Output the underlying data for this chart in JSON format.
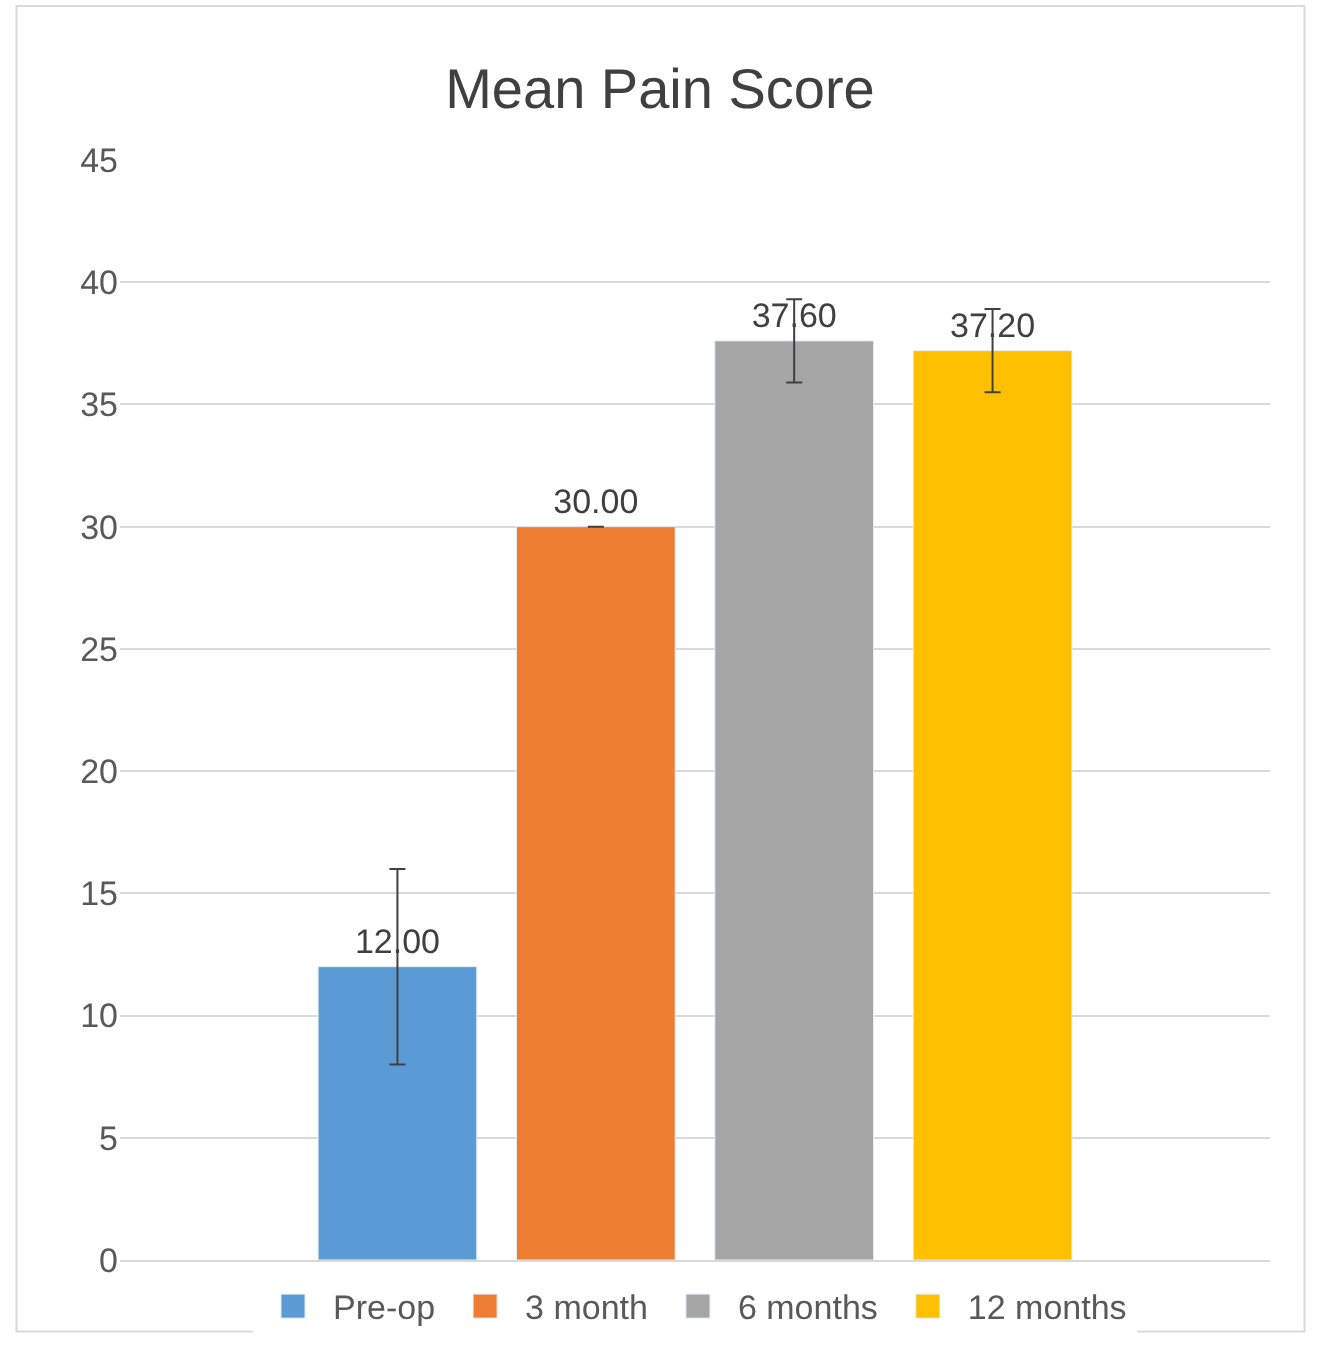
{
  "chart_data": {
    "type": "bar",
    "title": "Mean Pain Score",
    "categories": [
      null
    ],
    "series": [
      {
        "name": "Pre-op",
        "color": "#5b9bd5",
        "values": [
          12.0
        ],
        "errors": [
          4
        ],
        "value_labels": [
          "12.00"
        ]
      },
      {
        "name": "3 month",
        "color": "#ed7d31",
        "values": [
          30.0
        ],
        "errors": [
          0
        ],
        "value_labels": [
          "30.00"
        ]
      },
      {
        "name": "6 months",
        "color": "#a5a5a5",
        "values": [
          37.6
        ],
        "errors": [
          1.7
        ],
        "value_labels": [
          "37.60"
        ]
      },
      {
        "name": "12 months",
        "color": "#ffc000",
        "values": [
          37.2
        ],
        "errors": [
          1.7
        ],
        "value_labels": [
          "37.20"
        ]
      }
    ],
    "ylim": [
      0,
      45
    ],
    "yticks": [
      0,
      5,
      10,
      15,
      20,
      25,
      30,
      35,
      40,
      45
    ],
    "grid": "y",
    "legend": "bottom"
  }
}
